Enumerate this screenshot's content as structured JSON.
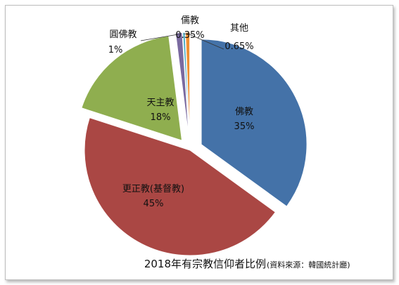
{
  "chart_data": {
    "type": "pie",
    "title": "2018年有宗教信仰者比例",
    "subtitle": "(資料來源：韓國統計廳)",
    "slices": [
      {
        "label": "佛教",
        "value": 35,
        "display": "35%",
        "color": "#4472a8",
        "exploded": true
      },
      {
        "label": "更正教(基督教)",
        "value": 45,
        "display": "45%",
        "color": "#aa4744",
        "exploded": false
      },
      {
        "label": "天主教",
        "value": 18,
        "display": "18%",
        "color": "#8fae4f",
        "exploded": true
      },
      {
        "label": "圓佛教",
        "value": 1,
        "display": "1%",
        "color": "#7a6aa0",
        "exploded": true
      },
      {
        "label": "儒教",
        "value": 0.35,
        "display": "0.35%",
        "color": "#4bacc6",
        "exploded": true
      },
      {
        "label": "其他",
        "value": 0.65,
        "display": "0.65%",
        "color": "#f08f33",
        "exploded": true
      }
    ]
  }
}
